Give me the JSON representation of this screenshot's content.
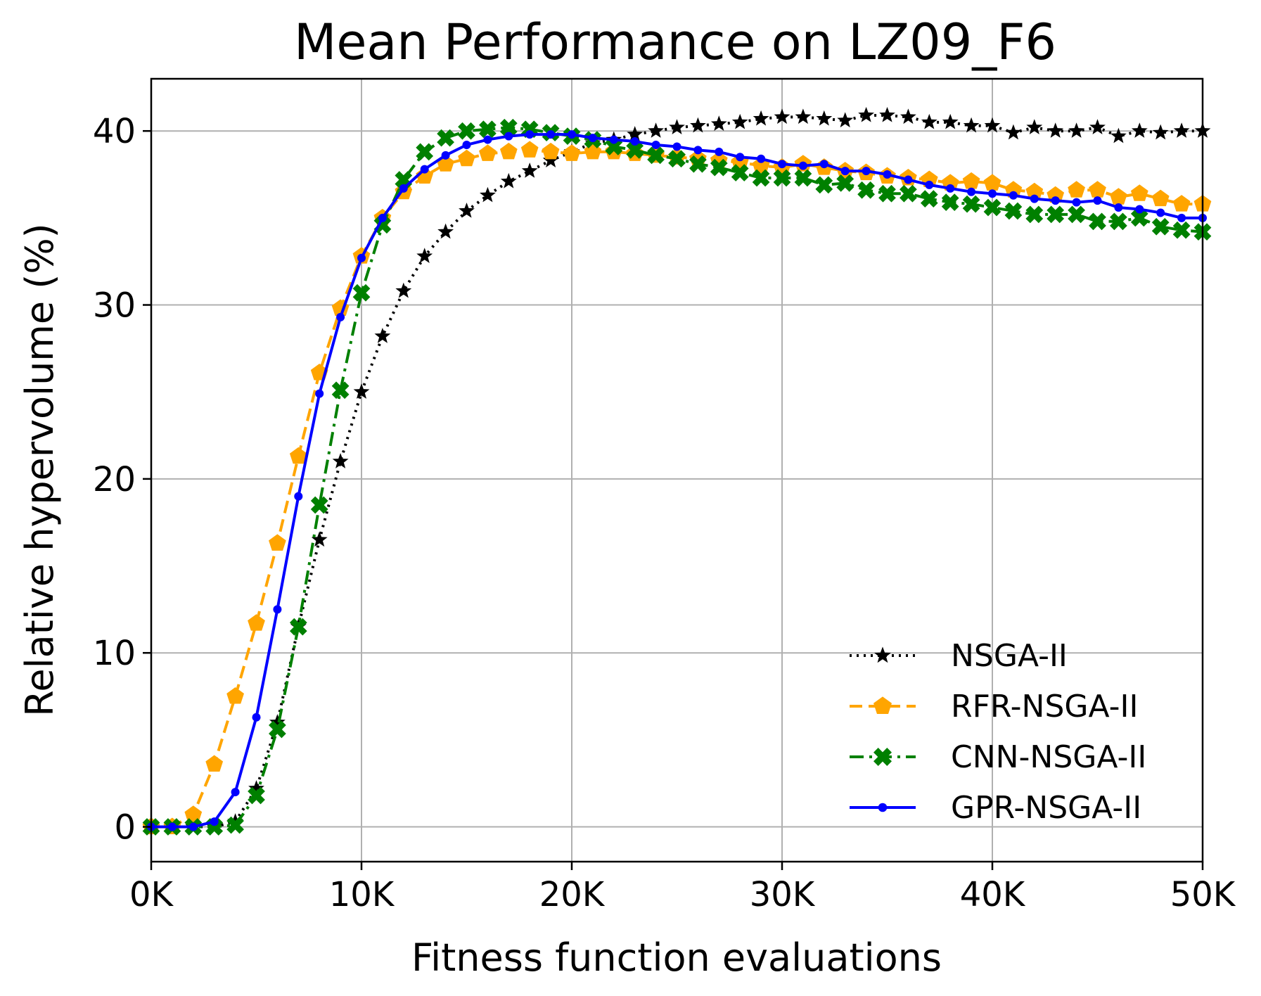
{
  "chart_data": {
    "type": "line",
    "title": "Mean Performance on LZ09_F6",
    "xlabel": "Fitness function evaluations",
    "ylabel": "Relative hypervolume (%)",
    "xlim": [
      0,
      50000
    ],
    "ylim": [
      -2,
      43
    ],
    "grid": true,
    "legend_position": "lower-right",
    "x_ticks": [
      {
        "value": 0,
        "label": "0K"
      },
      {
        "value": 10000,
        "label": "10K"
      },
      {
        "value": 20000,
        "label": "20K"
      },
      {
        "value": 30000,
        "label": "30K"
      },
      {
        "value": 40000,
        "label": "40K"
      },
      {
        "value": 50000,
        "label": "50K"
      }
    ],
    "y_ticks": [
      {
        "value": 0,
        "label": "0"
      },
      {
        "value": 10,
        "label": "10"
      },
      {
        "value": 20,
        "label": "20"
      },
      {
        "value": 30,
        "label": "30"
      },
      {
        "value": 40,
        "label": "40"
      }
    ],
    "x": [
      0,
      1000,
      2000,
      3000,
      4000,
      5000,
      6000,
      7000,
      8000,
      9000,
      10000,
      11000,
      12000,
      13000,
      14000,
      15000,
      16000,
      17000,
      18000,
      19000,
      20000,
      21000,
      22000,
      23000,
      24000,
      25000,
      26000,
      27000,
      28000,
      29000,
      30000,
      31000,
      32000,
      33000,
      34000,
      35000,
      36000,
      37000,
      38000,
      39000,
      40000,
      41000,
      42000,
      43000,
      44000,
      45000,
      46000,
      47000,
      48000,
      49000,
      50000
    ],
    "series": [
      {
        "name": "NSGA-II",
        "color": "#000000",
        "line_style": "dotted",
        "marker": "star",
        "values": [
          0,
          0,
          0,
          0,
          0.3,
          2.2,
          6.0,
          11.5,
          16.5,
          21.0,
          25.0,
          28.2,
          30.8,
          32.8,
          34.2,
          35.4,
          36.3,
          37.1,
          37.7,
          38.3,
          38.8,
          39.3,
          39.5,
          39.8,
          40.0,
          40.2,
          40.3,
          40.4,
          40.5,
          40.7,
          40.8,
          40.8,
          40.7,
          40.6,
          40.9,
          40.9,
          40.8,
          40.5,
          40.5,
          40.3,
          40.3,
          39.9,
          40.2,
          40.0,
          40.0,
          40.2,
          39.7,
          40.0,
          39.9,
          40.0,
          40.0
        ]
      },
      {
        "name": "RFR-NSGA-II",
        "color": "#ffa500",
        "line_style": "dashed",
        "marker": "pentagon",
        "values": [
          0,
          0,
          0.7,
          3.6,
          7.5,
          11.7,
          16.3,
          21.3,
          26.1,
          29.8,
          32.8,
          35.0,
          36.5,
          37.4,
          38.1,
          38.4,
          38.7,
          38.8,
          38.9,
          38.8,
          38.7,
          38.8,
          38.8,
          38.7,
          38.6,
          38.5,
          38.4,
          38.3,
          38.2,
          38.0,
          37.9,
          38.1,
          37.9,
          37.7,
          37.6,
          37.4,
          37.3,
          37.2,
          37.0,
          37.1,
          37.0,
          36.6,
          36.5,
          36.3,
          36.6,
          36.6,
          36.2,
          36.4,
          36.1,
          35.8,
          35.8
        ]
      },
      {
        "name": "CNN-NSGA-II",
        "color": "#008000",
        "line_style": "dashdot",
        "marker": "x",
        "values": [
          0,
          0,
          0,
          0,
          0.1,
          1.8,
          5.6,
          11.5,
          18.5,
          25.1,
          30.7,
          34.6,
          37.2,
          38.8,
          39.6,
          40.0,
          40.1,
          40.2,
          40.1,
          39.9,
          39.7,
          39.5,
          39.1,
          38.9,
          38.6,
          38.4,
          38.1,
          37.9,
          37.6,
          37.3,
          37.3,
          37.3,
          36.9,
          37.0,
          36.6,
          36.4,
          36.4,
          36.1,
          35.9,
          35.8,
          35.6,
          35.4,
          35.2,
          35.2,
          35.2,
          34.8,
          34.8,
          35.0,
          34.5,
          34.3,
          34.2
        ]
      },
      {
        "name": "GPR-NSGA-II",
        "color": "#0000ff",
        "line_style": "solid",
        "marker": "dot",
        "values": [
          0,
          0,
          0,
          0.3,
          2.0,
          6.3,
          12.5,
          19.0,
          24.9,
          29.3,
          32.7,
          35.0,
          36.7,
          37.8,
          38.6,
          39.2,
          39.5,
          39.7,
          39.8,
          39.8,
          39.8,
          39.6,
          39.5,
          39.4,
          39.2,
          39.1,
          38.9,
          38.8,
          38.5,
          38.4,
          38.1,
          38.0,
          38.1,
          37.7,
          37.7,
          37.5,
          37.2,
          36.9,
          36.7,
          36.5,
          36.4,
          36.3,
          36.1,
          36.0,
          35.9,
          36.0,
          35.6,
          35.5,
          35.3,
          35.0,
          35.0
        ]
      }
    ]
  }
}
